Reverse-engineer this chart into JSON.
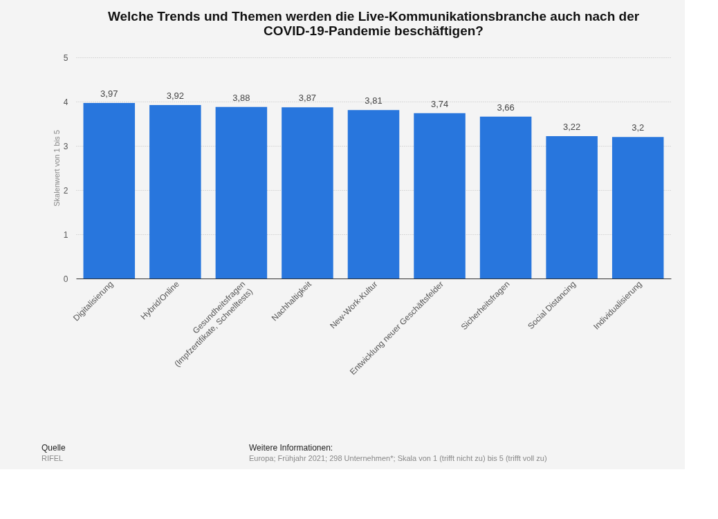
{
  "chart_data": {
    "type": "bar",
    "title": "Welche Trends und Themen werden die Live-Kommunikationsbranche auch nach der\nCOVID-19-Pandemie beschäftigen?",
    "ylabel": "Skalenwert von 1 bis 5",
    "categories": [
      "Digitalisierung",
      "Hybrid/Online",
      "Gesundheitsfragen\n(Impfzertifikate, Schnelltests)",
      "Nachhaltigkeit",
      "New-Work-Kultur",
      "Entwicklung neuer Geschäftsfelder",
      "Sicherheitsfragen",
      "Social Distancing",
      "Individualisierung"
    ],
    "values": [
      3.97,
      3.92,
      3.88,
      3.87,
      3.81,
      3.74,
      3.66,
      3.22,
      3.2
    ],
    "color": "#2876dd",
    "value_labels": [
      "3,97",
      "3,92",
      "3,88",
      "3,87",
      "3,81",
      "3,74",
      "3,66",
      "3,22",
      "3,2"
    ],
    "ylim": [
      0,
      5
    ],
    "yticks": [
      0,
      1,
      2,
      3,
      4,
      5
    ],
    "grid": "y",
    "annotations": [
      "Quelle",
      "RIFEL",
      "Weitere Informationen:",
      "Europa; Frühjahr 2021; 298 Unternehmen*; Skala von 1 (trifft nicht zu) bis 5 (trifft voll zu)"
    ]
  }
}
